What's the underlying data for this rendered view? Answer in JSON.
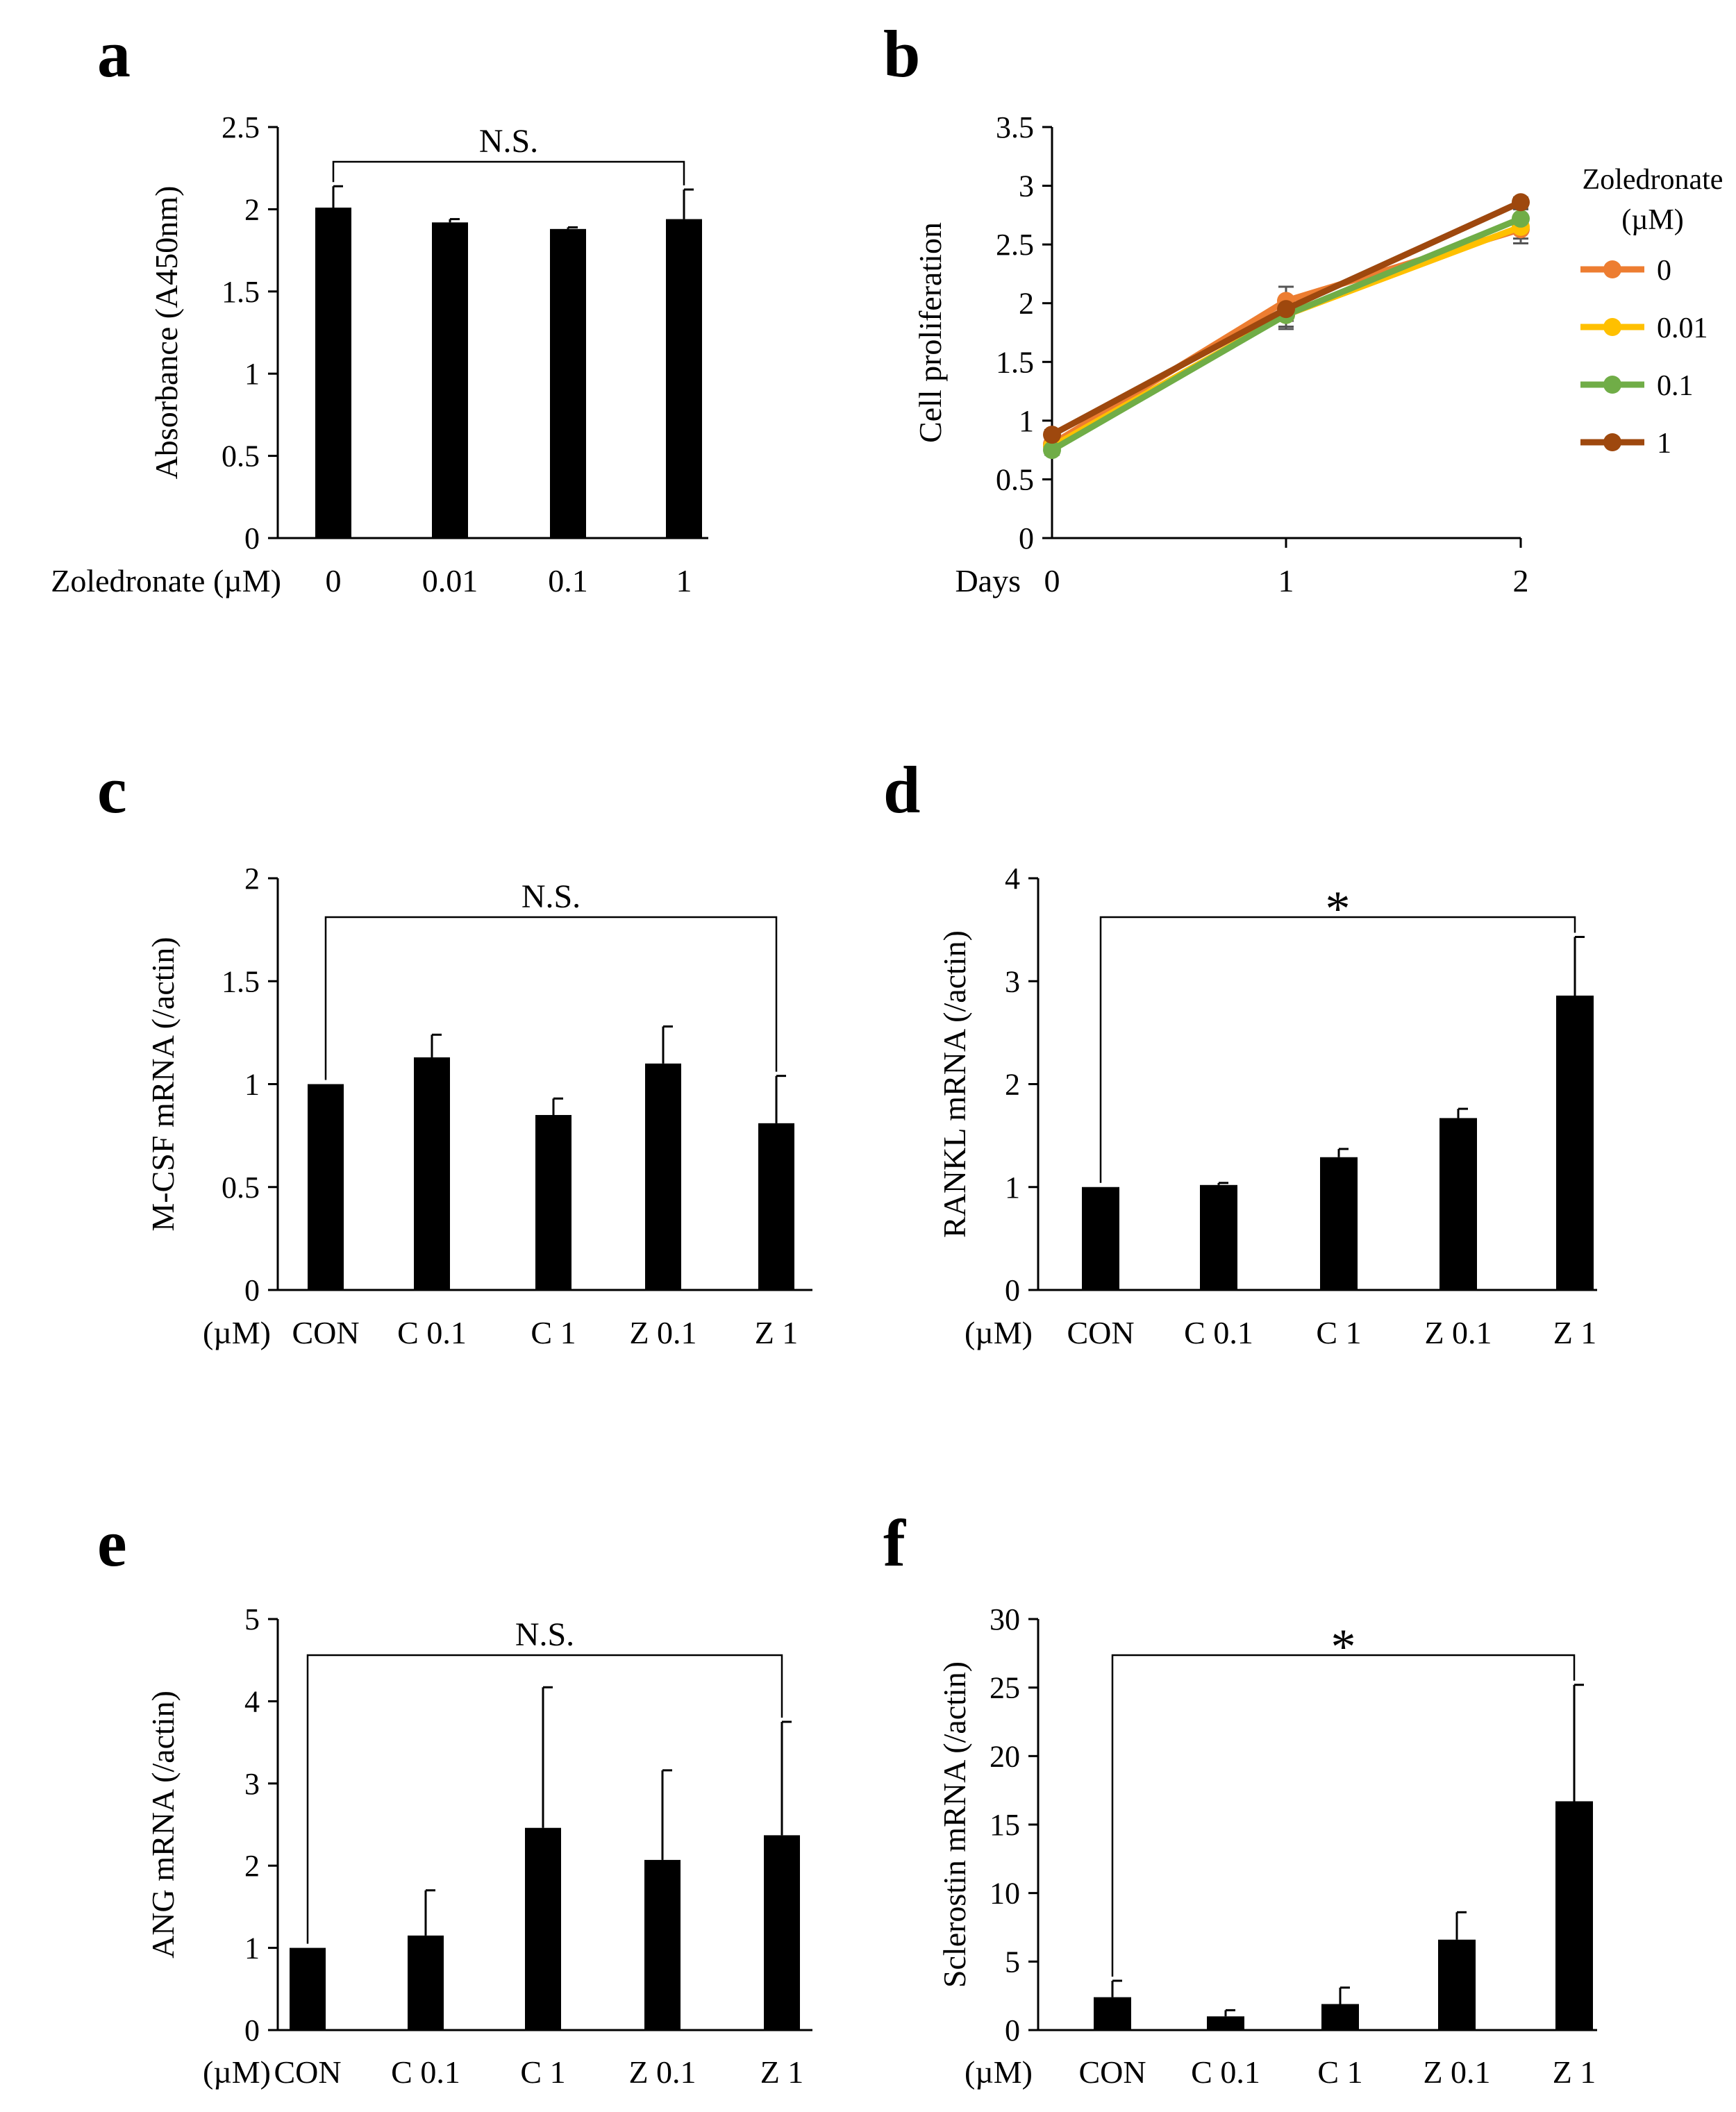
{
  "chart_data": [
    {
      "id": "a",
      "type": "bar",
      "panel_label": "a",
      "categories": [
        "0",
        "0.01",
        "0.1",
        "1"
      ],
      "values": [
        2.01,
        1.92,
        1.88,
        1.94
      ],
      "errors": [
        0.13,
        0.02,
        0.01,
        0.18
      ],
      "ylabel": "Absorbance (A450nm)",
      "xlabel": "Zoledronate (µM)",
      "ylim": [
        0,
        2.5
      ],
      "yticks": [
        "0",
        "0.5",
        "1",
        "1.5",
        "2",
        "2.5"
      ],
      "significance": {
        "label": "N.S.",
        "from": 0,
        "to": 3
      },
      "bar_color": "#000000"
    },
    {
      "id": "b",
      "type": "line",
      "panel_label": "b",
      "x": [
        "0",
        "1",
        "2"
      ],
      "series": [
        {
          "name": "0",
          "color": "#ED7D31",
          "values": [
            0.8,
            2.02,
            2.63
          ],
          "errors": [
            0.05,
            0.12,
            0.12
          ]
        },
        {
          "name": "0.01",
          "color": "#FFC000",
          "values": [
            0.78,
            1.9,
            2.65
          ],
          "errors": [
            0.04,
            0.1,
            0.1
          ]
        },
        {
          "name": "0.1",
          "color": "#70AD47",
          "values": [
            0.75,
            1.9,
            2.72
          ],
          "errors": [
            0.04,
            0.12,
            0.08
          ]
        },
        {
          "name": "1",
          "color": "#9E480E",
          "values": [
            0.88,
            1.95,
            2.86
          ],
          "errors": [
            0.04,
            0.1,
            0.04
          ]
        }
      ],
      "ylabel": "Cell proliferation",
      "xlabel": "Days",
      "ylim": [
        0,
        3.5
      ],
      "yticks": [
        "0",
        "0.5",
        "1",
        "1.5",
        "2",
        "2.5",
        "3",
        "3.5"
      ],
      "legend_title": [
        "Zoledronate",
        "(µM)"
      ],
      "legend_position": "right"
    },
    {
      "id": "c",
      "type": "bar",
      "panel_label": "c",
      "categories": [
        "CON",
        "C 0.1",
        "C 1",
        "Z 0.1",
        "Z 1"
      ],
      "values": [
        1.0,
        1.13,
        0.85,
        1.1,
        0.81
      ],
      "errors": [
        0.0,
        0.11,
        0.08,
        0.18,
        0.23
      ],
      "ylabel": "M-CSF mRNA (/actin)",
      "xlabel": "(µM)",
      "ylim": [
        0,
        2
      ],
      "yticks": [
        "0",
        "0.5",
        "1",
        "1.5",
        "2"
      ],
      "significance": {
        "label": "N.S.",
        "from": 0,
        "to": 4
      },
      "bar_color": "#000000"
    },
    {
      "id": "d",
      "type": "bar",
      "panel_label": "d",
      "categories": [
        "CON",
        "C 0.1",
        "C 1",
        "Z 0.1",
        "Z 1"
      ],
      "values": [
        1.0,
        1.02,
        1.29,
        1.67,
        2.86
      ],
      "errors": [
        0.0,
        0.02,
        0.08,
        0.09,
        0.57
      ],
      "ylabel": "RANKL mRNA (/actin)",
      "xlabel": "(µM)",
      "ylim": [
        0,
        4
      ],
      "yticks": [
        "0",
        "1",
        "2",
        "3",
        "4"
      ],
      "significance": {
        "label": "*",
        "from": 0,
        "to": 4
      },
      "bar_color": "#000000"
    },
    {
      "id": "e",
      "type": "bar",
      "panel_label": "e",
      "categories": [
        "CON",
        "C 0.1",
        "C 1",
        "Z 0.1",
        "Z 1"
      ],
      "values": [
        1.0,
        1.15,
        2.46,
        2.07,
        2.37
      ],
      "errors": [
        0.0,
        0.55,
        1.71,
        1.09,
        1.38
      ],
      "ylabel": "ANG mRNA (/actin)",
      "xlabel": "(µM)",
      "ylim": [
        0,
        5
      ],
      "yticks": [
        "0",
        "1",
        "2",
        "3",
        "4",
        "5"
      ],
      "significance": {
        "label": "N.S.",
        "from": 0,
        "to": 4
      },
      "bar_color": "#000000"
    },
    {
      "id": "f",
      "type": "bar",
      "panel_label": "f",
      "categories": [
        "CON",
        "C 0.1",
        "C 1",
        "Z 0.1",
        "Z 1"
      ],
      "values": [
        2.4,
        1.0,
        1.9,
        6.6,
        16.7
      ],
      "errors": [
        1.2,
        0.45,
        1.2,
        2.0,
        8.5
      ],
      "ylabel": "Sclerostin mRNA (/actin)",
      "xlabel": "(µM)",
      "ylim": [
        0,
        30
      ],
      "yticks": [
        "0",
        "5",
        "10",
        "15",
        "20",
        "25",
        "30"
      ],
      "significance": {
        "label": "*",
        "from": 0,
        "to": 4
      },
      "bar_color": "#000000"
    }
  ]
}
